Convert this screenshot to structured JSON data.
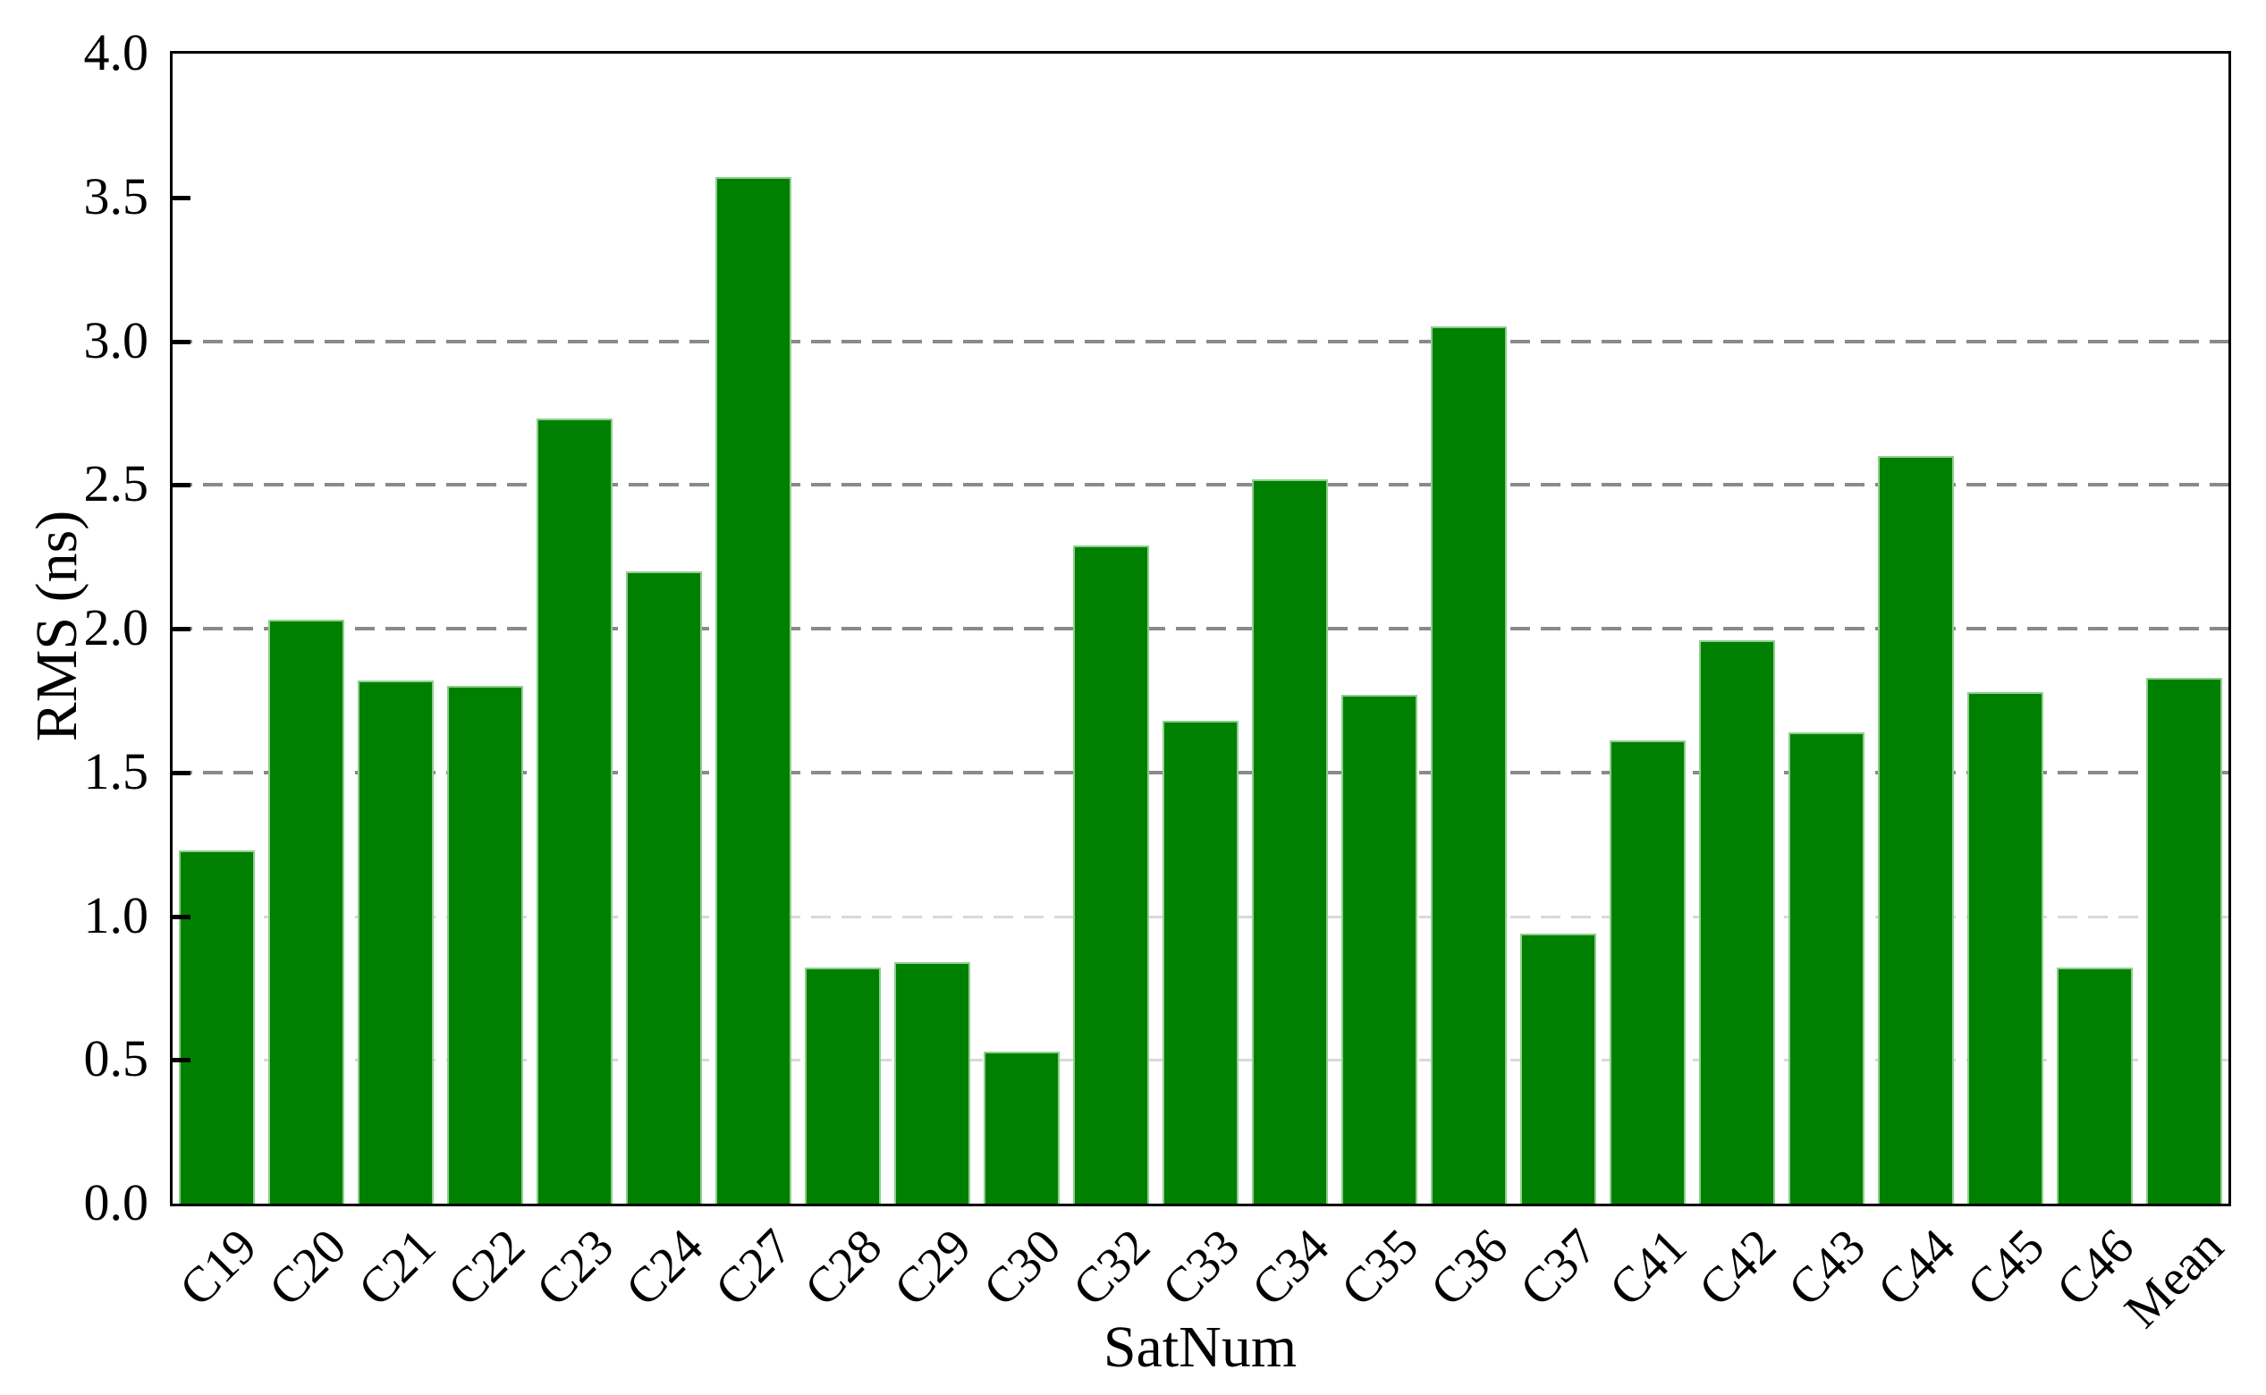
{
  "chart_data": {
    "type": "bar",
    "title": "",
    "xlabel": "SatNum",
    "ylabel": "RMS (ns)",
    "categories": [
      "C19",
      "C20",
      "C21",
      "C22",
      "C23",
      "C24",
      "C27",
      "C28",
      "C29",
      "C30",
      "C32",
      "C33",
      "C34",
      "C35",
      "C36",
      "C37",
      "C41",
      "C42",
      "C43",
      "C44",
      "C45",
      "C46",
      "Mean"
    ],
    "values": [
      1.23,
      2.03,
      1.82,
      1.8,
      2.73,
      2.2,
      3.57,
      0.82,
      0.84,
      0.53,
      2.29,
      1.68,
      2.52,
      1.77,
      3.05,
      0.94,
      1.61,
      1.96,
      1.64,
      2.6,
      1.78,
      0.82,
      1.83
    ],
    "ylim": [
      0.0,
      4.0
    ],
    "ytick_labels": [
      "4.0",
      "3.5",
      "3.0",
      "2.5",
      "2.0",
      "1.5",
      "1.0",
      "0.5",
      "0.0"
    ],
    "ytick_mark_values": [
      3.5,
      3.0,
      2.5,
      2.0,
      1.5,
      1.0,
      0.5
    ],
    "gridlines_strong": [
      3.0,
      2.5,
      2.0,
      1.5
    ],
    "gridlines_faint": [
      1.0,
      0.5
    ],
    "grid_style": "horizontal dashed",
    "legend": "none",
    "colors": {
      "bar_fill": "#008000",
      "bar_edge": "#8ecf8e",
      "grid_strong": "#8a8a8a",
      "grid_faint": "#d9d9d9",
      "axis": "#000000",
      "background": "#ffffff"
    }
  }
}
